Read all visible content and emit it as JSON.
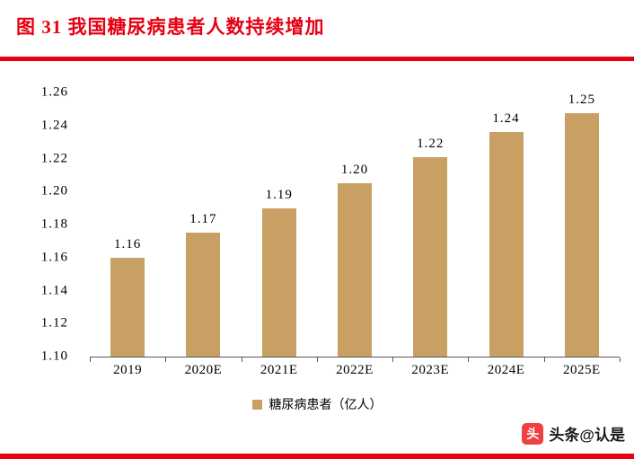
{
  "title": "图 31  我国糖尿病患者人数持续增加",
  "colors": {
    "accent_red": "#E60012",
    "bar": "#C9A063",
    "axis": "#595959",
    "watermark_logo": "#F04142"
  },
  "chart_data": {
    "type": "bar",
    "title": "图 31 我国糖尿病患者人数持续增加",
    "categories": [
      "2019",
      "2020E",
      "2021E",
      "2022E",
      "2023E",
      "2024E",
      "2025E"
    ],
    "values": [
      1.16,
      1.175,
      1.19,
      1.205,
      1.221,
      1.236,
      1.251
    ],
    "labels": [
      "1.16",
      "1.17",
      "1.19",
      "1.20",
      "1.22",
      "1.24",
      "1.25"
    ],
    "xlabel": "",
    "ylabel": "",
    "ylim": [
      1.1,
      1.26
    ],
    "ytick_step": 0.02,
    "yticks": [
      "1.26",
      "1.24",
      "1.22",
      "1.20",
      "1.18",
      "1.16",
      "1.14",
      "1.12",
      "1.10"
    ],
    "grid": false,
    "legend": "糖尿病患者（亿人）",
    "legend_position": "bottom"
  },
  "watermark": {
    "logo_glyph": "头",
    "text": "头条@认是"
  }
}
